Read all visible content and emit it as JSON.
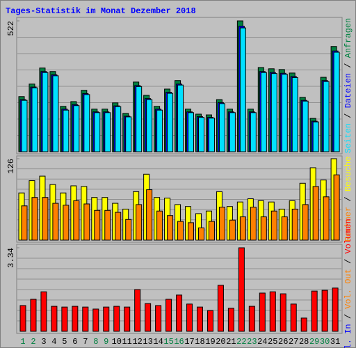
{
  "chart_data": [
    {
      "type": "bar",
      "title": "Tages-Statistik im Monat Dezember 2018",
      "ylim": [
        0,
        522
      ],
      "yticks": [
        522
      ],
      "legend_separator": " / ",
      "series": [
        {
          "name": "Anfragen",
          "color": "#008040",
          "values": [
            220,
            270,
            334,
            320,
            181,
            200,
            245,
            170,
            170,
            195,
            153,
            278,
            225,
            181,
            250,
            284,
            170,
            150,
            147,
            208,
            170,
            522,
            170,
            336,
            331,
            328,
            314,
            217,
            133,
            297,
            420
          ]
        },
        {
          "name": "Dateien",
          "color": "#0000ff",
          "values": [
            208,
            258,
            320,
            307,
            170,
            188,
            232,
            159,
            159,
            183,
            142,
            264,
            212,
            170,
            237,
            270,
            159,
            140,
            137,
            196,
            159,
            501,
            159,
            320,
            316,
            313,
            300,
            205,
            122,
            284,
            402
          ]
        },
        {
          "name": "Seiten",
          "color": "#00e0ff",
          "values": [
            205,
            255,
            316,
            303,
            166,
            184,
            228,
            156,
            156,
            180,
            139,
            260,
            208,
            166,
            233,
            266,
            156,
            137,
            134,
            192,
            156,
            494,
            156,
            316,
            312,
            309,
            296,
            202,
            119,
            280,
            397
          ]
        }
      ]
    },
    {
      "type": "bar",
      "ylim": [
        0,
        126
      ],
      "yticks": [
        126
      ],
      "legend_separator": " / ",
      "series": [
        {
          "name": "Besuche",
          "color": "#ffff00",
          "values": [
            73,
            92,
            99,
            86,
            73,
            84,
            83,
            66,
            66,
            57,
            48,
            75,
            102,
            66,
            65,
            55,
            52,
            41,
            45,
            75,
            52,
            59,
            64,
            61,
            59,
            48,
            61,
            88,
            112,
            93,
            126
          ]
        },
        {
          "name": "Rechner",
          "color": "#ff8000",
          "values": [
            53,
            66,
            66,
            57,
            54,
            61,
            56,
            46,
            46,
            43,
            32,
            55,
            78,
            45,
            38,
            29,
            27,
            19,
            29,
            51,
            31,
            36,
            51,
            36,
            45,
            36,
            48,
            55,
            83,
            67,
            101
          ]
        }
      ]
    },
    {
      "type": "bar",
      "ylim": [
        0,
        3.34
      ],
      "yticks": [
        3.34
      ],
      "legend_separator": " / ",
      "categories": [
        "1",
        "2",
        "3",
        "4",
        "5",
        "6",
        "7",
        "8",
        "9",
        "10",
        "11",
        "12",
        "13",
        "14",
        "15",
        "16",
        "17",
        "18",
        "19",
        "20",
        "21",
        "22",
        "23",
        "24",
        "25",
        "26",
        "27",
        "28",
        "29",
        "30",
        "31"
      ],
      "category_colors": [
        "#008040",
        "#008040",
        "#000000",
        "#000000",
        "#000000",
        "#000000",
        "#000000",
        "#008040",
        "#008040",
        "#000000",
        "#000000",
        "#000000",
        "#000000",
        "#000000",
        "#008040",
        "#008040",
        "#000000",
        "#000000",
        "#000000",
        "#000000",
        "#000000",
        "#008040",
        "#008040",
        "#000000",
        "#000000",
        "#000000",
        "#000000",
        "#000000",
        "#008040",
        "#008040",
        "#000000"
      ],
      "series": [
        {
          "name": "Volumen",
          "color": "#ff0000",
          "values": [
            1.03,
            1.28,
            1.58,
            1.0,
            0.97,
            1.0,
            0.97,
            0.89,
            0.97,
            1.0,
            0.97,
            1.67,
            1.11,
            1.03,
            1.28,
            1.45,
            1.09,
            0.97,
            0.83,
            1.84,
            0.92,
            3.34,
            1.0,
            1.53,
            1.58,
            1.5,
            1.09,
            0.53,
            1.61,
            1.64,
            1.73
          ]
        }
      ],
      "legend_only": [
        {
          "name": "Vol. Out",
          "color": "#ff8000"
        },
        {
          "name": "Vol. In",
          "color": "#0000ff"
        }
      ]
    }
  ]
}
